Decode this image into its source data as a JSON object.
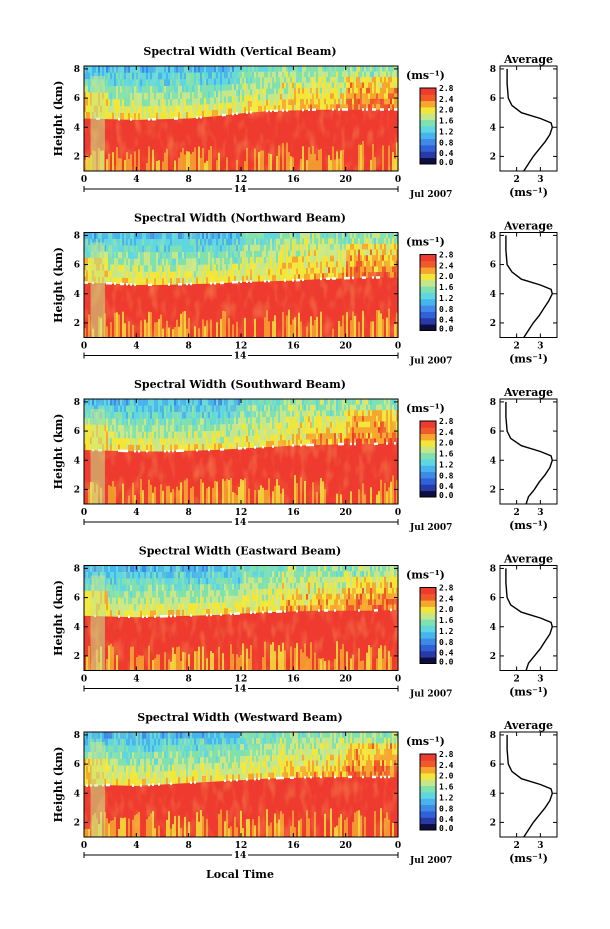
{
  "chart_data": {
    "type": "heatmap",
    "shared": {
      "xlabel": "Local Time",
      "xticks": [
        "0",
        "4",
        "8",
        "12",
        "16",
        "20",
        "0"
      ],
      "xrange_hours": [
        0,
        24
      ],
      "date_label": "14",
      "month_label": "Jul 2007",
      "ylabel": "Height (km)",
      "yticks": [
        "2",
        "4",
        "6",
        "8"
      ],
      "yrange_km": [
        1,
        8.2
      ],
      "colorbar": {
        "unit_label": "(ms⁻¹)",
        "ticks": [
          "0.0",
          "0.4",
          "0.8",
          "1.2",
          "1.6",
          "2.0",
          "2.4",
          "2.8"
        ],
        "range": [
          0,
          2.8
        ],
        "colors": [
          "#0d0d40",
          "#283aa8",
          "#2f62d8",
          "#3f8ae6",
          "#47b4ee",
          "#5fd6e0",
          "#7fe0b0",
          "#c6e68a",
          "#f2e63a",
          "#f6a62f",
          "#f05a2a",
          "#ee3a2f"
        ]
      },
      "avg_title": "Average",
      "avg_xlabel": "(ms⁻¹)",
      "avg_xticks": [
        "2",
        "3"
      ],
      "avg_yticks": [
        "2",
        "4",
        "6",
        "8"
      ],
      "avg_xrange": [
        1.3,
        3.7
      ]
    },
    "panels": [
      {
        "title": "Spectral Width (Vertical Beam)",
        "boundary_km": [
          4.6,
          4.55,
          4.5,
          4.55,
          4.6,
          4.75,
          4.95,
          5.1,
          5.15,
          5.2,
          5.2,
          5.2,
          5.2
        ],
        "avg_profile": {
          "height_km": [
            1,
            1.5,
            2,
            2.5,
            3,
            3.5,
            4,
            4.3,
            4.6,
            5,
            5.5,
            6,
            7,
            8
          ],
          "width": [
            2.3,
            2.5,
            2.7,
            2.95,
            3.2,
            3.4,
            3.5,
            3.45,
            3.0,
            2.2,
            1.8,
            1.65,
            1.6,
            1.6
          ]
        }
      },
      {
        "title": "Spectral Width (Northward Beam)",
        "boundary_km": [
          4.75,
          4.7,
          4.6,
          4.6,
          4.65,
          4.7,
          4.8,
          4.85,
          4.9,
          5.0,
          5.05,
          5.1,
          5.1
        ],
        "avg_profile": {
          "height_km": [
            1,
            1.5,
            2,
            2.5,
            3,
            3.5,
            4,
            4.3,
            4.6,
            5,
            5.5,
            6,
            7,
            8
          ],
          "width": [
            2.3,
            2.5,
            2.7,
            2.95,
            3.15,
            3.35,
            3.5,
            3.45,
            3.0,
            2.2,
            1.8,
            1.6,
            1.55,
            1.55
          ]
        }
      },
      {
        "title": "Spectral Width (Southward Beam)",
        "boundary_km": [
          4.7,
          4.65,
          4.6,
          4.6,
          4.65,
          4.7,
          4.8,
          4.9,
          5.0,
          5.05,
          5.1,
          5.1,
          5.15
        ],
        "avg_profile": {
          "height_km": [
            1,
            1.5,
            2,
            2.5,
            3,
            3.5,
            4,
            4.3,
            4.6,
            5,
            5.5,
            6,
            7,
            8
          ],
          "width": [
            2.4,
            2.5,
            2.75,
            2.95,
            3.2,
            3.4,
            3.5,
            3.45,
            3.0,
            2.2,
            1.75,
            1.6,
            1.55,
            1.55
          ]
        }
      },
      {
        "title": "Spectral Width (Eastward Beam)",
        "boundary_km": [
          4.75,
          4.7,
          4.65,
          4.7,
          4.75,
          4.8,
          4.9,
          5.0,
          5.05,
          5.1,
          5.1,
          5.1,
          5.15
        ],
        "avg_profile": {
          "height_km": [
            1,
            1.5,
            2,
            2.5,
            3,
            3.5,
            4,
            4.3,
            4.6,
            5,
            5.5,
            6,
            7,
            8
          ],
          "width": [
            2.4,
            2.5,
            2.75,
            3.0,
            3.2,
            3.4,
            3.5,
            3.45,
            3.0,
            2.2,
            1.75,
            1.6,
            1.55,
            1.55
          ]
        }
      },
      {
        "title": "Spectral Width (Westward Beam)",
        "boundary_km": [
          4.5,
          4.55,
          4.5,
          4.6,
          4.7,
          4.8,
          4.9,
          5.0,
          5.05,
          5.1,
          5.1,
          5.1,
          5.1
        ],
        "avg_profile": {
          "height_km": [
            1,
            1.5,
            2,
            2.5,
            3,
            3.5,
            4,
            4.3,
            4.6,
            5,
            5.5,
            6,
            7,
            8
          ],
          "width": [
            2.3,
            2.5,
            2.7,
            2.95,
            3.2,
            3.4,
            3.5,
            3.45,
            3.0,
            2.2,
            1.8,
            1.65,
            1.6,
            1.6
          ]
        }
      }
    ]
  }
}
